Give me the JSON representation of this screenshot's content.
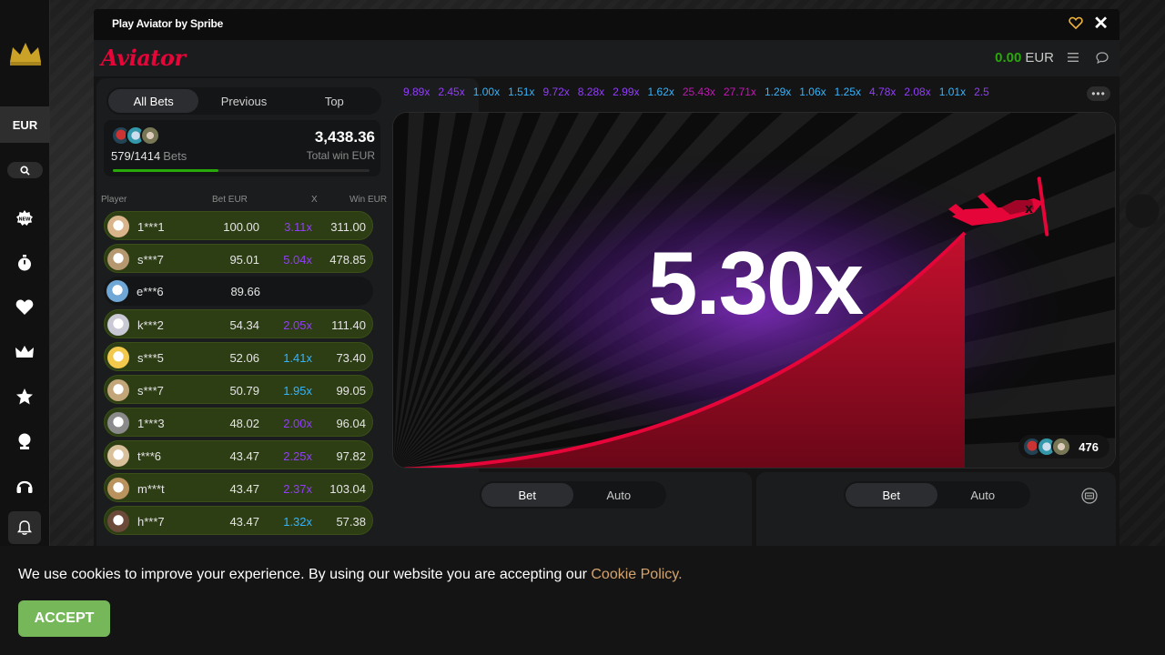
{
  "window": {
    "title": "Play Aviator by Spribe"
  },
  "brand": {
    "logo": "Aviator"
  },
  "balance": {
    "amount": "0.00",
    "currency": "EUR"
  },
  "rail": {
    "currency": "EUR",
    "icons": [
      "crown-logo-icon",
      "search-icon",
      "new-badge-icon",
      "stopwatch-icon",
      "heart-icon",
      "crown-icon",
      "star-icon",
      "trophy-icon",
      "headset-icon",
      "bell-icon"
    ]
  },
  "bets": {
    "tabs": [
      "All Bets",
      "Previous",
      "Top"
    ],
    "active_tab": "All Bets",
    "count": "579/1414",
    "count_label": "Bets",
    "total_win": "3,438.36",
    "total_win_label": "Total win EUR",
    "progress_fraction": 0.41,
    "columns": {
      "player": "Player",
      "bet": "Bet EUR",
      "x": "X",
      "win": "Win EUR"
    },
    "rows": [
      {
        "player": "1***1",
        "bet": "100.00",
        "mult": "3.11x",
        "win": "311.00",
        "color": "#913ef8",
        "won": true
      },
      {
        "player": "s***7",
        "bet": "95.01",
        "mult": "5.04x",
        "win": "478.85",
        "color": "#913ef8",
        "won": true
      },
      {
        "player": "e***6",
        "bet": "89.66",
        "mult": "",
        "win": "",
        "color": "#913ef8",
        "won": false
      },
      {
        "player": "k***2",
        "bet": "54.34",
        "mult": "2.05x",
        "win": "111.40",
        "color": "#913ef8",
        "won": true
      },
      {
        "player": "s***5",
        "bet": "52.06",
        "mult": "1.41x",
        "win": "73.40",
        "color": "#34b4ff",
        "won": true
      },
      {
        "player": "s***7",
        "bet": "50.79",
        "mult": "1.95x",
        "win": "99.05",
        "color": "#34b4ff",
        "won": true
      },
      {
        "player": "1***3",
        "bet": "48.02",
        "mult": "2.00x",
        "win": "96.04",
        "color": "#913ef8",
        "won": true
      },
      {
        "player": "t***6",
        "bet": "43.47",
        "mult": "2.25x",
        "win": "97.82",
        "color": "#913ef8",
        "won": true
      },
      {
        "player": "m***t",
        "bet": "43.47",
        "mult": "2.37x",
        "win": "103.04",
        "color": "#913ef8",
        "won": true
      },
      {
        "player": "h***7",
        "bet": "43.47",
        "mult": "1.32x",
        "win": "57.38",
        "color": "#34b4ff",
        "won": true
      }
    ]
  },
  "history": [
    {
      "v": "9.89x",
      "c": "#913ef8"
    },
    {
      "v": "2.45x",
      "c": "#913ef8"
    },
    {
      "v": "1.00x",
      "c": "#34b4ff"
    },
    {
      "v": "1.51x",
      "c": "#34b4ff"
    },
    {
      "v": "9.72x",
      "c": "#913ef8"
    },
    {
      "v": "8.28x",
      "c": "#913ef8"
    },
    {
      "v": "2.99x",
      "c": "#913ef8"
    },
    {
      "v": "1.62x",
      "c": "#34b4ff"
    },
    {
      "v": "25.43x",
      "c": "#c017b4"
    },
    {
      "v": "27.71x",
      "c": "#c017b4"
    },
    {
      "v": "1.29x",
      "c": "#34b4ff"
    },
    {
      "v": "1.06x",
      "c": "#34b4ff"
    },
    {
      "v": "1.25x",
      "c": "#34b4ff"
    },
    {
      "v": "4.78x",
      "c": "#913ef8"
    },
    {
      "v": "2.08x",
      "c": "#913ef8"
    },
    {
      "v": "1.01x",
      "c": "#34b4ff"
    },
    {
      "v": "2.5",
      "c": "#913ef8"
    }
  ],
  "game": {
    "multiplier": "5.30x",
    "online_count": "476",
    "accent": "#e50539"
  },
  "bet_panels": [
    {
      "tabs": [
        "Bet",
        "Auto"
      ],
      "active": "Bet"
    },
    {
      "tabs": [
        "Bet",
        "Auto"
      ],
      "active": "Bet"
    }
  ],
  "cookie": {
    "text": "We use cookies to improve your experience. By using our website you are accepting our ",
    "link": "Cookie Policy.",
    "accept": "ACCEPT"
  }
}
